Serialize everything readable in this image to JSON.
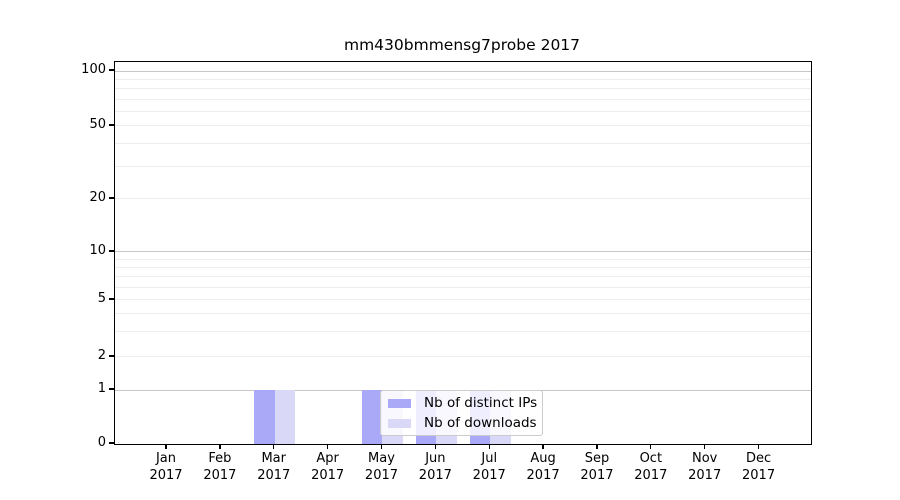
{
  "title": "mm430bmmensg7probe 2017",
  "chart_data": {
    "type": "bar",
    "title": "mm430bmmensg7probe 2017",
    "categories": [
      {
        "month": "Jan",
        "year": "2017"
      },
      {
        "month": "Feb",
        "year": "2017"
      },
      {
        "month": "Mar",
        "year": "2017"
      },
      {
        "month": "Apr",
        "year": "2017"
      },
      {
        "month": "May",
        "year": "2017"
      },
      {
        "month": "Jun",
        "year": "2017"
      },
      {
        "month": "Jul",
        "year": "2017"
      },
      {
        "month": "Aug",
        "year": "2017"
      },
      {
        "month": "Sep",
        "year": "2017"
      },
      {
        "month": "Oct",
        "year": "2017"
      },
      {
        "month": "Nov",
        "year": "2017"
      },
      {
        "month": "Dec",
        "year": "2017"
      }
    ],
    "series": [
      {
        "name": "Nb of distinct IPs",
        "color": "#a9a9f7",
        "values": [
          0,
          0,
          1,
          0,
          1,
          1,
          1,
          0,
          0,
          0,
          0,
          0
        ]
      },
      {
        "name": "Nb of downloads",
        "color": "#d9d9f7",
        "values": [
          0,
          0,
          1,
          0,
          1,
          1,
          1,
          0,
          0,
          0,
          0,
          0
        ]
      }
    ],
    "xlabel": "",
    "ylabel": "",
    "y_scale": "symlog",
    "ylim": [
      0,
      110
    ],
    "y_ticks": [
      0,
      1,
      2,
      5,
      10,
      20,
      50,
      100
    ],
    "y_major_gridlines": [
      1,
      10,
      100
    ],
    "y_minor_gridlines": [
      2,
      3,
      4,
      5,
      6,
      7,
      8,
      9,
      20,
      30,
      40,
      50,
      60,
      70,
      80,
      90
    ],
    "grid": true,
    "legend_position": "inside lower-center"
  },
  "legend": {
    "items": [
      {
        "label": "Nb of distinct IPs",
        "color": "#a9a9f7"
      },
      {
        "label": "Nb of downloads",
        "color": "#d9d9f7"
      }
    ]
  },
  "colors": {
    "bar_distinct_ips": "#a9a9f7",
    "bar_downloads": "#d9d9f7",
    "grid_major": "#c6c6c6",
    "grid_minor": "#ededed",
    "spine": "#000000",
    "legend_border": "#cccccc",
    "background": "#ffffff"
  }
}
